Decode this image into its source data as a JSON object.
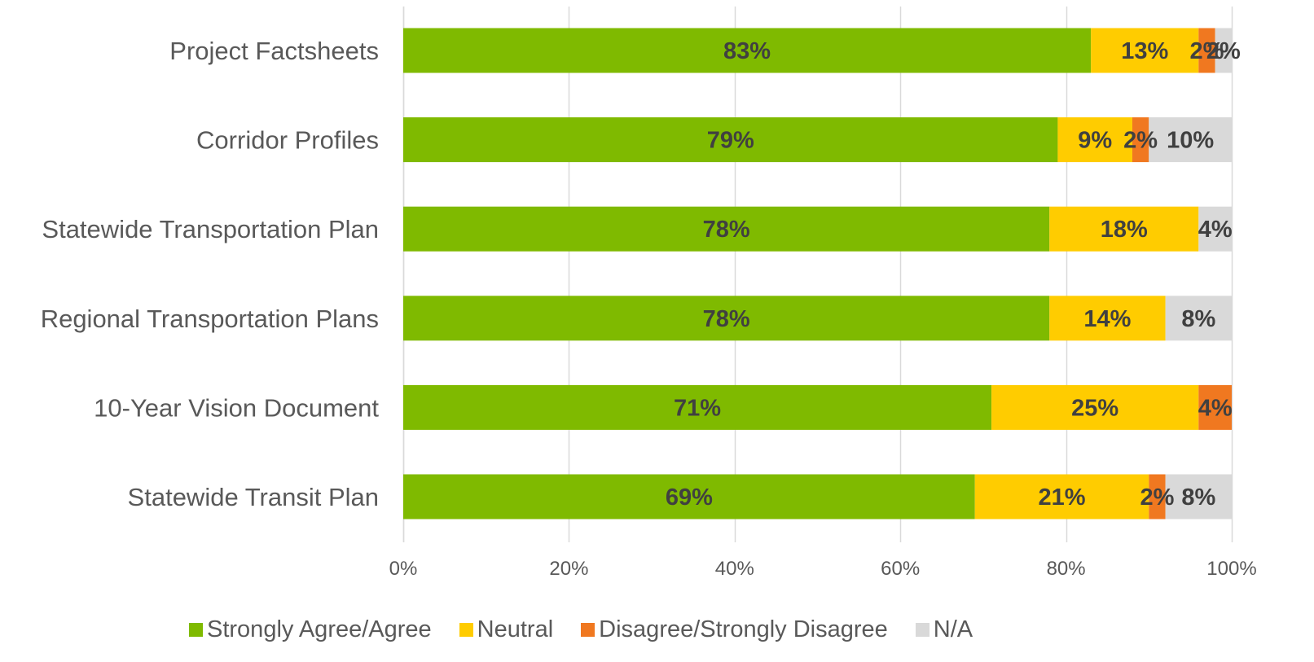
{
  "chart_data": {
    "type": "bar",
    "orientation": "horizontal",
    "stacked": true,
    "categories": [
      "Project Factsheets",
      "Corridor Profiles",
      "Statewide Transportation Plan",
      "Regional Transportation Plans",
      "10-Year Vision Document",
      "Statewide Transit Plan"
    ],
    "series": [
      {
        "name": "Strongly Agree/Agree",
        "color": "#7FBA00",
        "values": [
          83,
          79,
          78,
          78,
          71,
          69
        ],
        "labels": [
          "83%",
          "79%",
          "78%",
          "78%",
          "71%",
          "69%"
        ]
      },
      {
        "name": "Neutral",
        "color": "#FFCC00",
        "values": [
          13,
          9,
          18,
          14,
          25,
          21
        ],
        "labels": [
          "13%",
          "9%",
          "18%",
          "14%",
          "25%",
          "21%"
        ]
      },
      {
        "name": "Disagree/Strongly Disagree",
        "color": "#F07820",
        "values": [
          2,
          2,
          0,
          0,
          4,
          2
        ],
        "labels": [
          "2%",
          "2%",
          "",
          "",
          "4%",
          "2%"
        ]
      },
      {
        "name": "N/A",
        "color": "#D9D9D9",
        "values": [
          2,
          10,
          4,
          8,
          0,
          8
        ],
        "labels": [
          "2%",
          "10%",
          "4%",
          "8%",
          "",
          "8%"
        ]
      }
    ],
    "x_ticks": [
      "0%",
      "20%",
      "40%",
      "60%",
      "80%",
      "100%"
    ],
    "xlim": [
      0,
      100
    ],
    "grid": true,
    "legend_position": "bottom",
    "title": "",
    "xlabel": "",
    "ylabel": ""
  }
}
